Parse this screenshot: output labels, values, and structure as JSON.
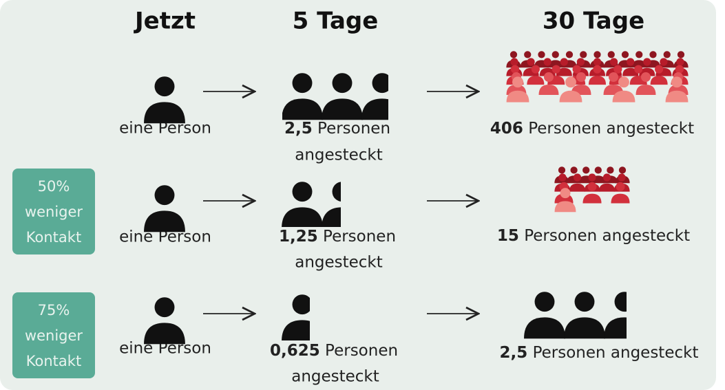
{
  "headers": [
    "Jetzt",
    "5 Tage",
    "30 Tage"
  ],
  "rows": [
    {
      "now": "eine Person",
      "day5": {
        "number": "2,5",
        "line1": "Personen",
        "line2": "angesteckt"
      },
      "day30": {
        "number": "406",
        "text": "Personen angesteckt"
      }
    },
    {
      "badge": [
        "50%",
        "weniger",
        "Kontakt"
      ],
      "now": "eine Person",
      "day5": {
        "number": "1,25",
        "line1": "Personen",
        "line2": "angesteckt"
      },
      "day30": {
        "number": "15",
        "text": "Personen angesteckt"
      }
    },
    {
      "badge": [
        "75%",
        "weniger",
        "Kontakt"
      ],
      "now": "eine Person",
      "day5": {
        "number": "0,625",
        "line1": "Personen",
        "line2": "angesteckt"
      },
      "day30": {
        "number": "2,5",
        "text": "Personen angesteckt"
      }
    }
  ]
}
